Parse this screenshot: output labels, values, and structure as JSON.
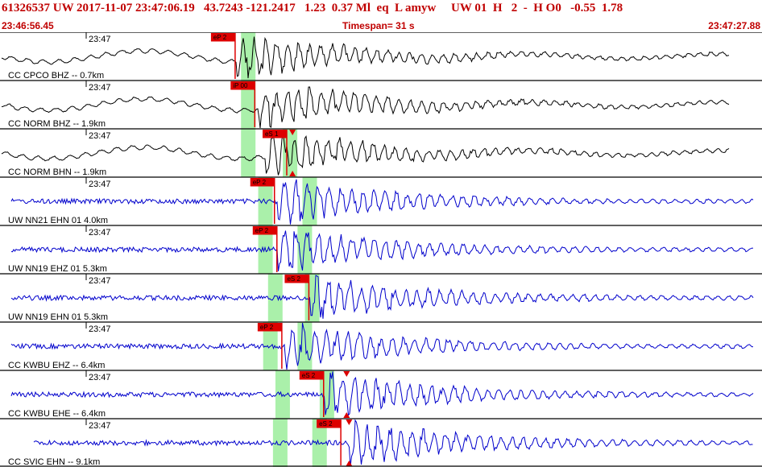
{
  "header": {
    "event_line": "61326537 UW 2017-11-07 23:47:06.19   43.7243 -121.2417   1.23  0.37 Ml  eq  L amyw     UW 01  H   2  -  H O0   -0.55  1.78",
    "start_time": "23:46:56.45",
    "timespan_text": "Timespan=  31 s",
    "end_time": "23:47:27.88"
  },
  "chart_data": {
    "type": "line",
    "title": "61326537 UW 2017-11-07 23:47:06.19",
    "timespan_s": 31,
    "x_range": [
      "23:46:56.45",
      "23:47:27.88"
    ],
    "colors": {
      "black_trace": "#000000",
      "blue_trace": "#0000cc",
      "pick": "#dd0000",
      "window": "#aaf0aa",
      "grid": "#000000"
    },
    "traces": [
      {
        "label": "CC CPCO BHZ -- 0.7km",
        "tick": "23:47",
        "color": "black",
        "picks": [
          {
            "text": "eP 2",
            "t": 9.5
          }
        ],
        "triangles": [],
        "green_t": [
          10.1
        ],
        "onset_t": 9.6
      },
      {
        "label": "CC NORM BHZ -- 1.9km",
        "tick": "23:47",
        "color": "black",
        "picks": [
          {
            "text": "iP 00",
            "t": 10.3
          }
        ],
        "triangles": [],
        "green_t": [
          10.1
        ],
        "onset_t": 10.5
      },
      {
        "label": "CC NORM BHN -- 1.9km",
        "tick": "23:47",
        "color": "black",
        "picks": [
          {
            "text": "eS 1",
            "t": 11.6
          }
        ],
        "triangles": [
          11.9
        ],
        "green_t": [
          10.1,
          11.8
        ],
        "onset_t": 10.8
      },
      {
        "label": "UW NN21 EHN 01 4.0km",
        "tick": "23:47",
        "color": "blue",
        "picks": [
          {
            "text": "eP 2",
            "t": 11.1
          }
        ],
        "triangles": [],
        "green_t": [
          10.8,
          12.6
        ],
        "onset_t": 11.3
      },
      {
        "label": "UW NN19 EHZ 01 5.3km",
        "tick": "23:47",
        "color": "blue",
        "picks": [
          {
            "text": "eP 2",
            "t": 11.2
          }
        ],
        "triangles": [],
        "green_t": [
          10.8,
          12.4
        ],
        "onset_t": 11.3
      },
      {
        "label": "UW NN19 EHN 01 5.3km",
        "tick": "23:47",
        "color": "blue",
        "picks": [
          {
            "text": "eS 2",
            "t": 12.5
          }
        ],
        "triangles": [],
        "green_t": [
          11.2,
          12.7
        ],
        "onset_t": 12.6
      },
      {
        "label": "CC KWBU EHZ -- 6.4km",
        "tick": "23:47",
        "color": "blue",
        "picks": [
          {
            "text": "eP 2",
            "t": 11.4
          }
        ],
        "triangles": [],
        "green_t": [
          11.0,
          12.4
        ],
        "onset_t": 11.6
      },
      {
        "label": "CC KWBU EHE -- 6.4km",
        "tick": "23:47",
        "color": "blue",
        "picks": [
          {
            "text": "eS 2",
            "t": 13.1
          }
        ],
        "triangles": [
          14.1
        ],
        "green_t": [
          11.5,
          13.3
        ],
        "onset_t": 13.2
      },
      {
        "label": "CC SVIC EHN -- 9.1km",
        "tick": "23:47",
        "color": "blue",
        "picks": [
          {
            "text": "eS 2",
            "t": 13.8
          }
        ],
        "triangles": [
          14.2
        ],
        "green_t": [
          11.4,
          13.0
        ],
        "onset_t": 14.2
      }
    ]
  }
}
